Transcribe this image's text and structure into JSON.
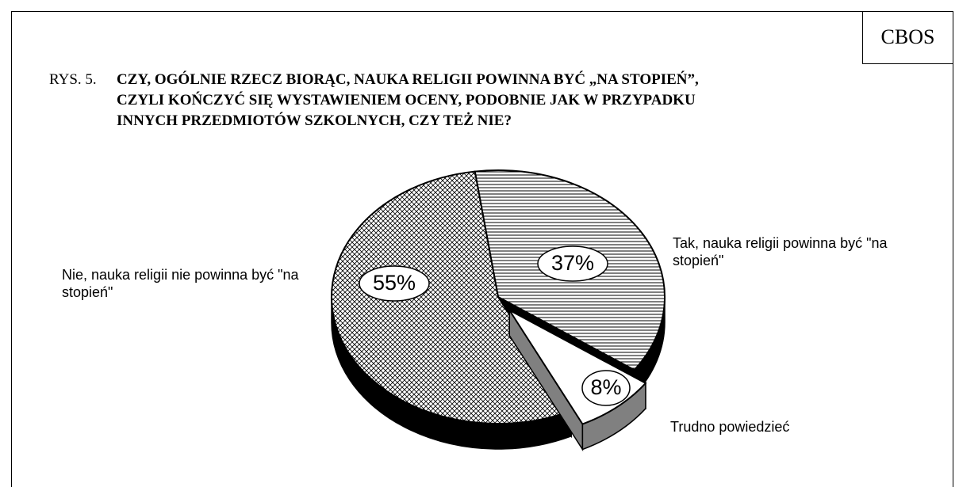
{
  "chart_data": {
    "type": "pie3d",
    "source": "CBOS",
    "figure_label": "RYS. 5.",
    "title": [
      "CZY, OGÓLNIE RZECZ BIORĄC, NAUKA RELIGII POWINNA BYĆ „NA STOPIEŃ”,",
      "CZYLI  KOŃCZYĆ SIĘ WYSTAWIENIEM OCENY, PODOBNIE JAK W PRZYPADKU",
      "INNYCH PRZEDMIOTÓW SZKOLNYCH, CZY TEŻ NIE?"
    ],
    "categories": [
      "Tak, nauka religii powinna być \"na stopień\"",
      "Trudno powiedzieć",
      "Nie, nauka religii nie powinna być \"na stopień\""
    ],
    "values": [
      37,
      8,
      55
    ],
    "value_labels": [
      "37%",
      "8%",
      "55%"
    ],
    "side_colors": [
      "#000000",
      "#808080",
      "#000000"
    ]
  }
}
